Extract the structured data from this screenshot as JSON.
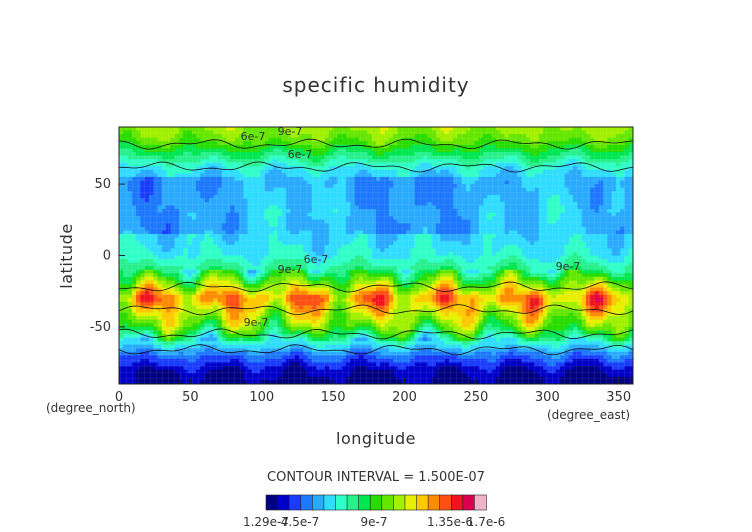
{
  "chart_data": {
    "type": "heatmap",
    "title": "specific humidity",
    "xlabel": "longitude",
    "ylabel": "latitude",
    "x_unit": "(degree_east)",
    "y_unit": "(degree_north)",
    "xlim": [
      0,
      360
    ],
    "ylim": [
      -90,
      90
    ],
    "x_ticks": [
      "0",
      "50",
      "100",
      "150",
      "200",
      "250",
      "300",
      "350"
    ],
    "y_ticks": [
      "50",
      "0",
      "-50"
    ],
    "contour_interval_text": "CONTOUR INTERVAL = 1.500E-07",
    "contour_labels": [
      "9e-7",
      "6e-7",
      "9e-7",
      "6e-7",
      "9e-7",
      "9e-7",
      "6e-7"
    ],
    "colorbar": {
      "labels": [
        "1.29e-7",
        "4.5e-7",
        "9e-7",
        "1.35e-6",
        "1.7e-6"
      ],
      "colors": [
        "#000080",
        "#0000c8",
        "#1a3cff",
        "#1e78ff",
        "#2aaaff",
        "#30dcff",
        "#30ffc8",
        "#28f08c",
        "#00e650",
        "#28dc00",
        "#64e600",
        "#a0f000",
        "#e6f000",
        "#ffc800",
        "#ff8c00",
        "#ff5014",
        "#f0141e",
        "#dc0050",
        "#f0b4c8"
      ]
    },
    "zonal_profile": {
      "latitude": [
        -90,
        -80,
        -70,
        -60,
        -50,
        -40,
        -30,
        -20,
        -10,
        0,
        10,
        20,
        30,
        40,
        50,
        60,
        70,
        80,
        90
      ],
      "value": [
        1.6e-07,
        2.2e-07,
        3.8e-07,
        6.2e-07,
        9e-07,
        1.05e-06,
        1.2e-06,
        9.5e-07,
        7e-07,
        5.8e-07,
        5.4e-07,
        5.2e-07,
        5.4e-07,
        5.2e-07,
        5e-07,
        5.5e-07,
        7.2e-07,
        9e-07,
        9.8e-07
      ]
    }
  }
}
